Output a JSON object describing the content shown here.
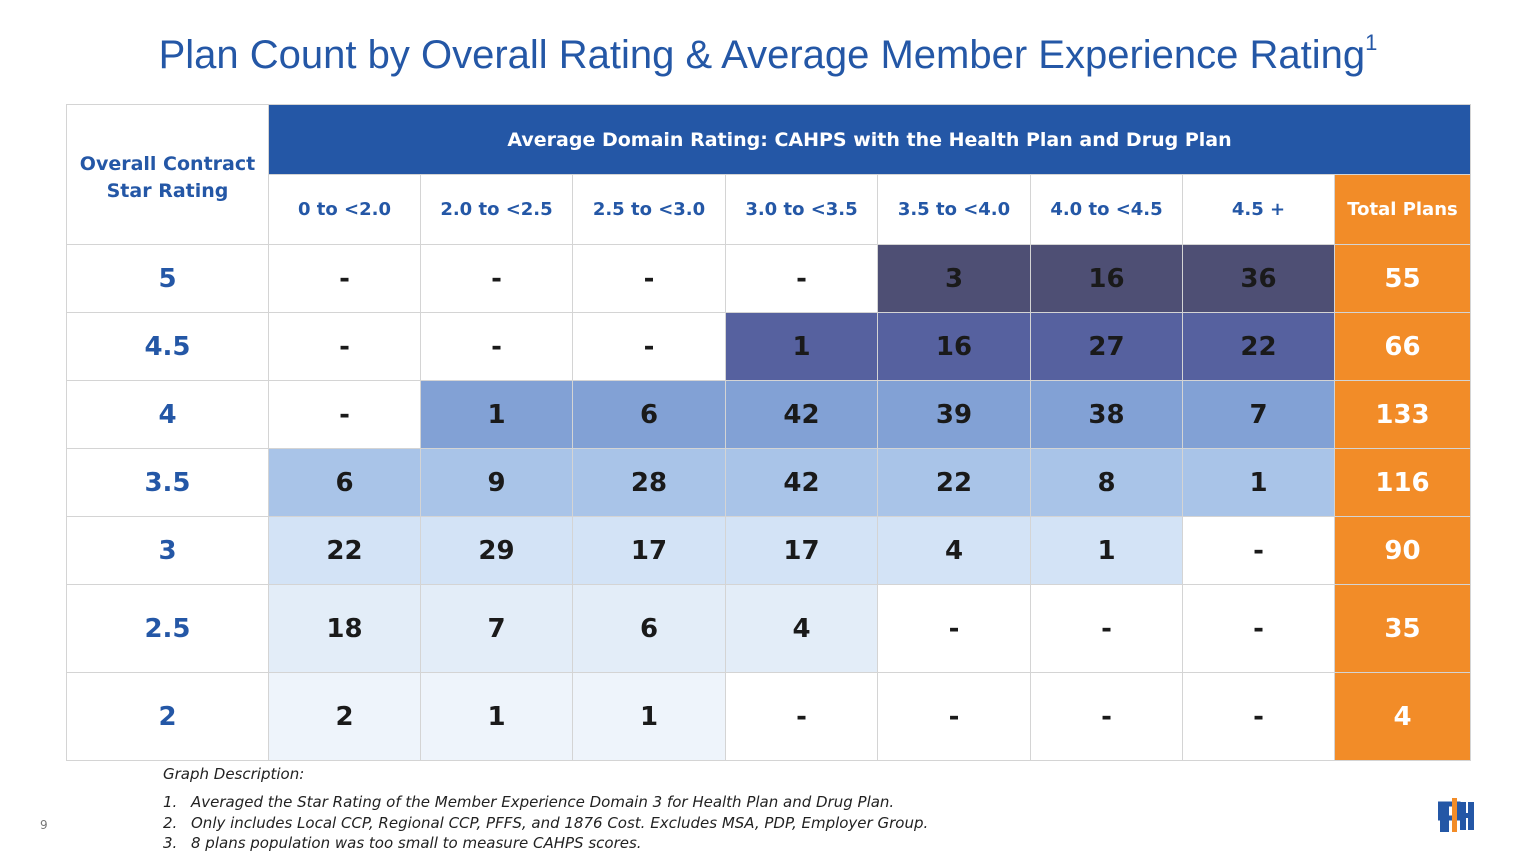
{
  "title": "Plan Count by Overall Rating & Average Member Experience Rating",
  "title_superscript": "1",
  "table": {
    "corner_header": "Overall Contract Star Rating",
    "group_header": "Average Domain Rating: CAHPS with the Health Plan and Drug Plan",
    "columns": [
      "0 to <2.0",
      "2.0 to <2.5",
      "2.5 to <3.0",
      "3.0 to <3.5",
      "3.5 to <4.0",
      "4.0 to <4.5",
      "4.5 +"
    ],
    "total_header": "Total Plans",
    "header_color": "#2457a6",
    "total_color": "#f28c28",
    "rows": [
      {
        "label": "5",
        "color": "#4e4f74",
        "cells": [
          "-",
          "-",
          "-",
          "-",
          3,
          16,
          36
        ],
        "total": 55
      },
      {
        "label": "4.5",
        "color": "#56619f",
        "cells": [
          "-",
          "-",
          "-",
          1,
          16,
          27,
          22
        ],
        "total": 66
      },
      {
        "label": "4",
        "color": "#82a1d5",
        "cells": [
          "-",
          1,
          6,
          42,
          39,
          38,
          7
        ],
        "total": 133
      },
      {
        "label": "3.5",
        "color": "#a9c4e8",
        "cells": [
          6,
          9,
          28,
          42,
          22,
          8,
          1
        ],
        "total": 116
      },
      {
        "label": "3",
        "color": "#d3e3f6",
        "cells": [
          22,
          29,
          17,
          17,
          4,
          1,
          "-"
        ],
        "total": 90
      },
      {
        "label": "2.5",
        "color": "#e3edf8",
        "cells": [
          18,
          7,
          6,
          4,
          "-",
          "-",
          "-"
        ],
        "total": 35
      },
      {
        "label": "2",
        "color": "#eef4fb",
        "cells": [
          2,
          1,
          1,
          "-",
          "-",
          "-",
          "-"
        ],
        "total": 4
      }
    ]
  },
  "notes": {
    "title": "Graph Description:",
    "items": [
      {
        "marker": "1.",
        "text": "Averaged the Star Rating of the Member Experience Domain 3 for Health Plan and Drug Plan."
      },
      {
        "marker": "2.",
        "text": "Only includes Local CCP, Regional CCP, PFFS, and 1876 Cost. Excludes MSA, PDP, Employer Group."
      },
      {
        "marker": "3.",
        "text": "8 plans population was too small to measure CAHPS scores."
      }
    ]
  },
  "page_number": "9"
}
